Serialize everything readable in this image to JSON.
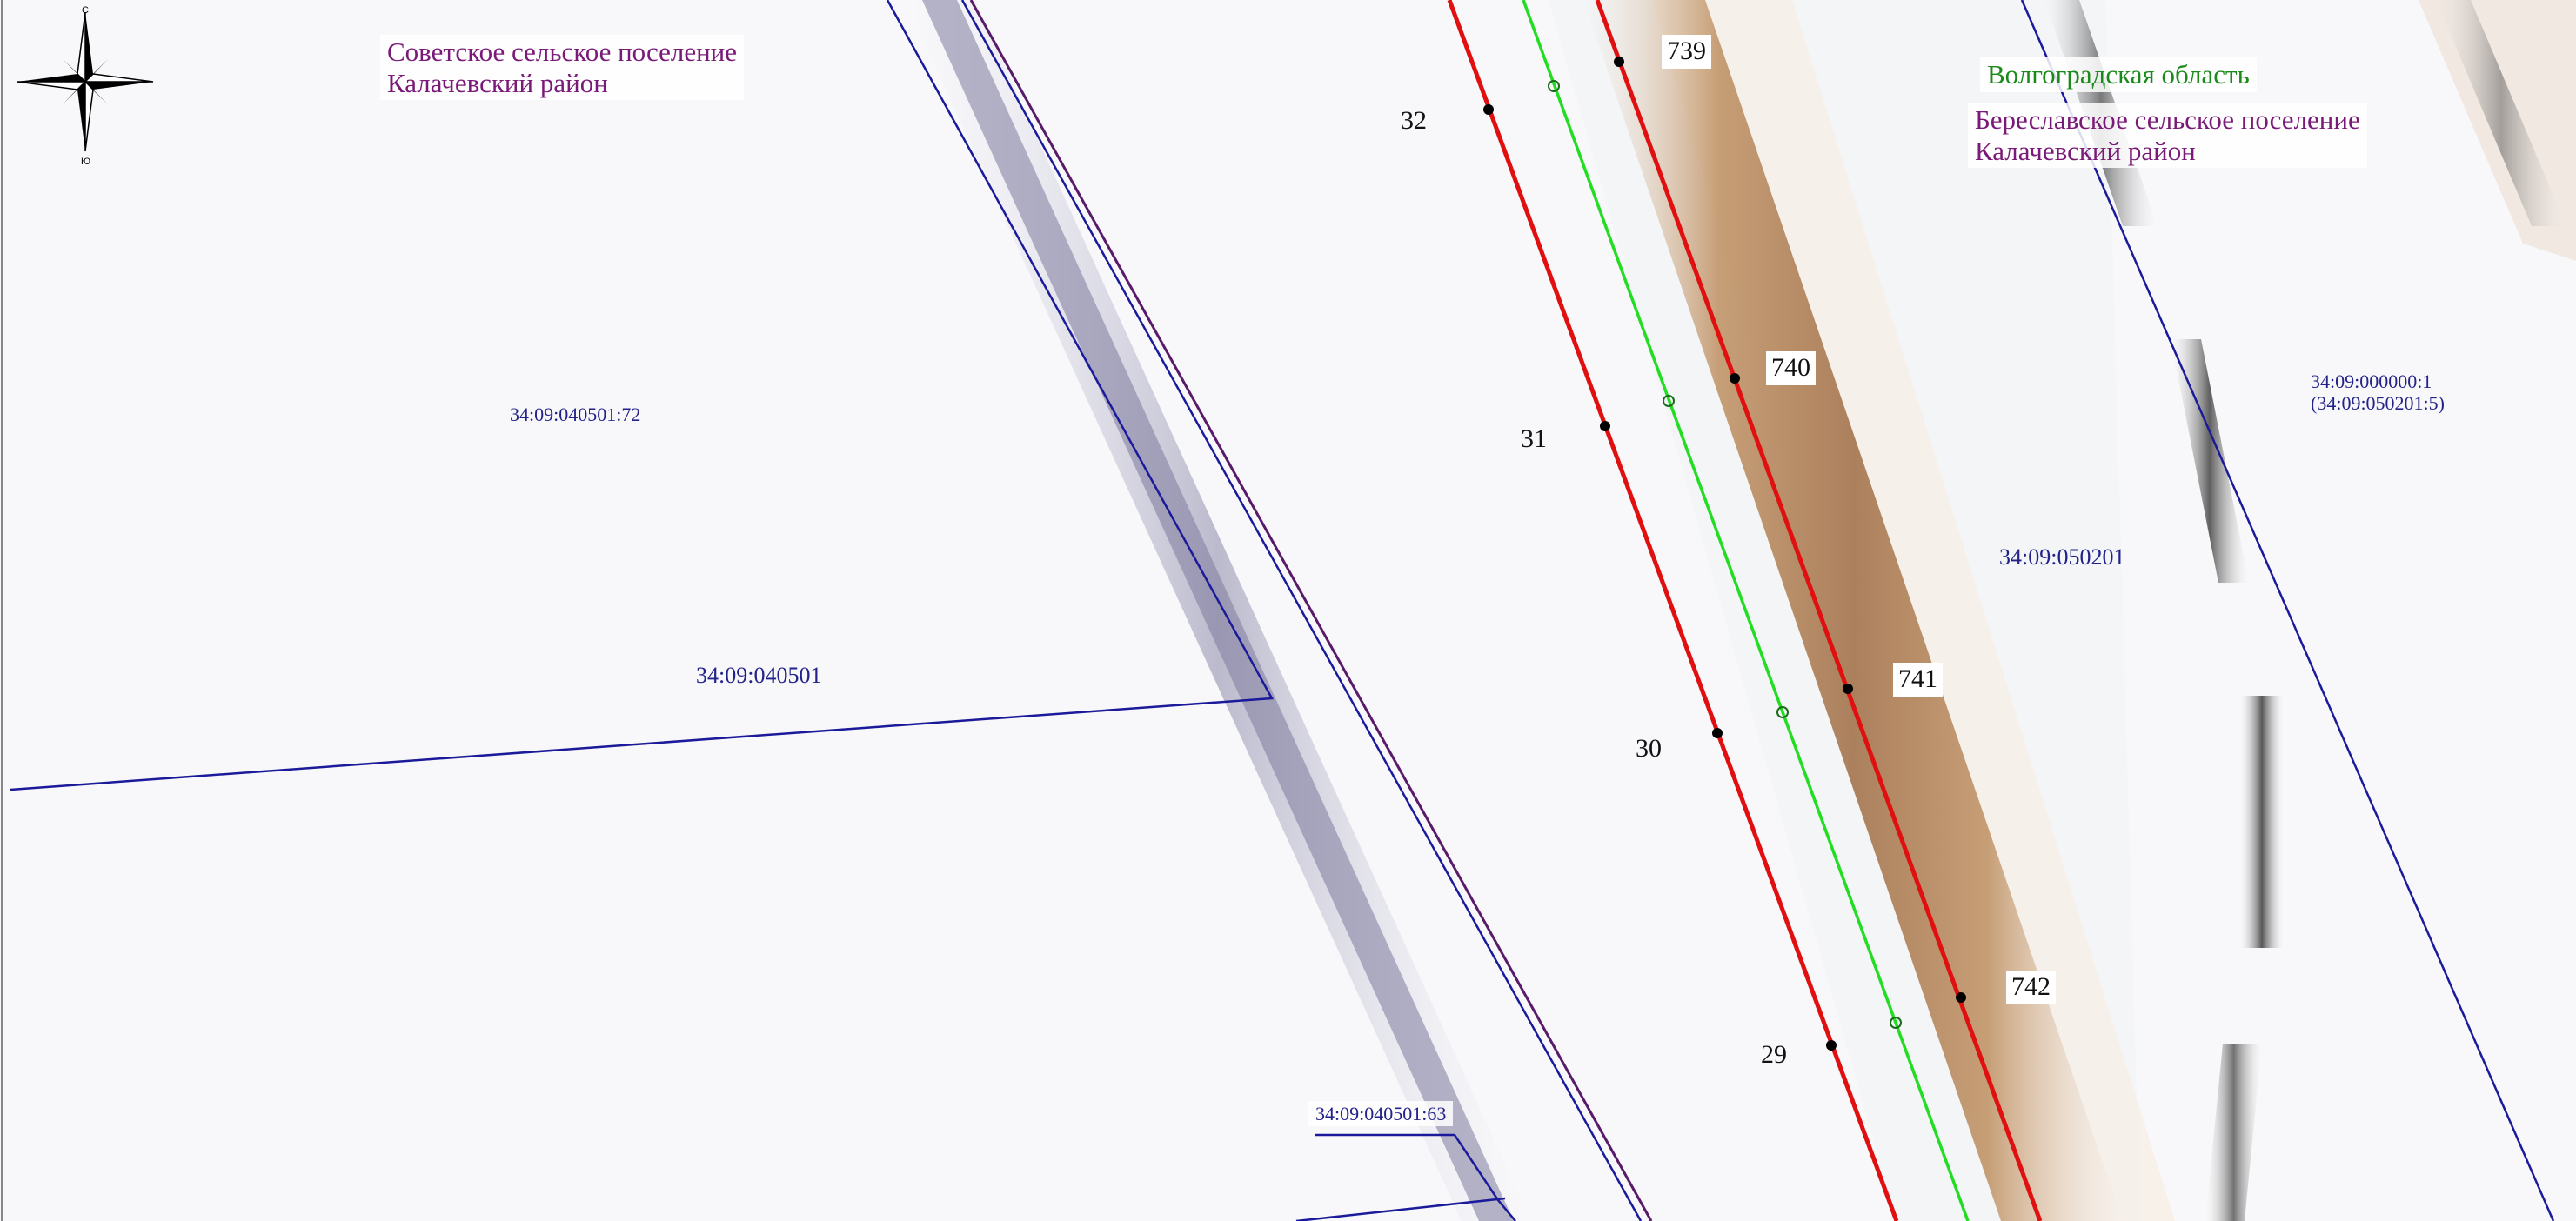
{
  "map": {
    "compass": {
      "north_label": "С",
      "south_label": "Ю"
    },
    "regions": {
      "sovetskoe_line1": "Советское сельское поселение",
      "sovetskoe_line2": "Калачевский район",
      "volgograd": "Волгоградская область",
      "bereslavskoe_line1": "Береславское сельское поселение",
      "bereslavskoe_line2": "Калачевский район"
    },
    "parcels": {
      "p_040501_72": "34:09:040501:72",
      "p_040501": "34:09:040501",
      "p_040501_63": "34:09:040501:63",
      "p_050201": "34:09:050201",
      "p_000000_1_line1": "34:09:000000:1",
      "p_000000_1_line2": "(34:09:050201:5)"
    },
    "red_line_points": [
      "32",
      "31",
      "30",
      "29"
    ],
    "boxed_points": [
      "739",
      "740",
      "741",
      "742"
    ],
    "colors": {
      "boundary_red": "#e01010",
      "boundary_green": "#22dd22",
      "cadastral_blue": "#1a1a9a",
      "municipal_purple": "#5a1a6a",
      "road_brown": "#b08060"
    }
  }
}
